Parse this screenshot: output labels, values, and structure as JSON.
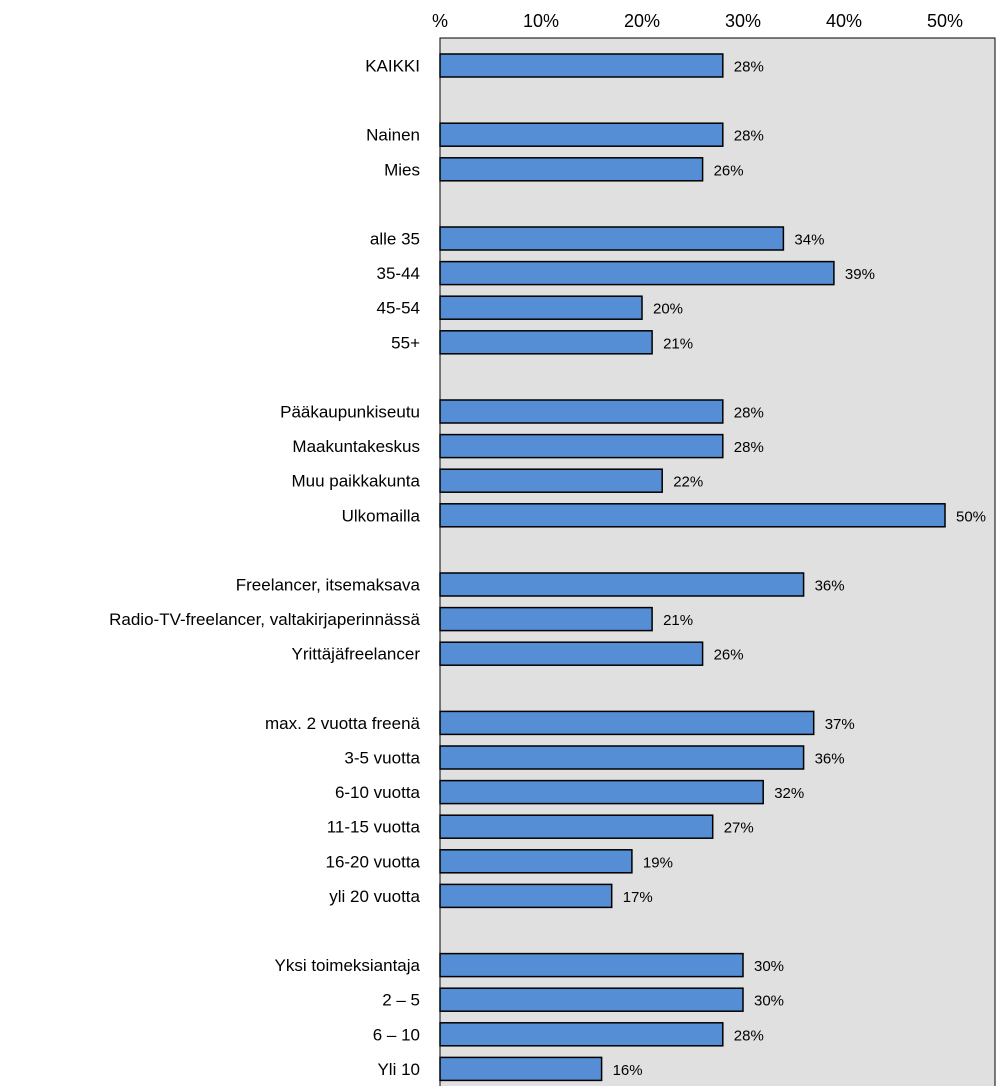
{
  "chart_data": {
    "type": "bar",
    "orientation": "horizontal",
    "x_axis_position": "top",
    "tick_labels": [
      "%",
      "10%",
      "20%",
      "30%",
      "40%",
      "50%"
    ],
    "xlim": [
      0,
      50
    ],
    "grid": false,
    "legend": "none",
    "categories": [
      "KAIKKI",
      "Nainen",
      "Mies",
      "alle 35",
      "35-44",
      "45-54",
      "55+",
      "Pääkaupunkiseutu",
      "Maakuntakeskus",
      "Muu paikkakunta",
      "Ulkomailla",
      "Freelancer, itsemaksava",
      "Radio-TV-freelancer, valtakirjaperinnässä",
      "Yrittäjäfreelancer",
      "max. 2 vuotta freenä",
      "3-5 vuotta",
      "6-10 vuotta",
      "11-15 vuotta",
      "16-20 vuotta",
      "yli 20 vuotta",
      "Yksi toimeksiantaja",
      "2 – 5",
      "6 – 10",
      "Yli 10"
    ],
    "groups": [
      1,
      2,
      4,
      4,
      3,
      6,
      4
    ],
    "values": [
      28,
      28,
      26,
      34,
      39,
      20,
      21,
      28,
      28,
      22,
      50,
      36,
      21,
      26,
      37,
      36,
      32,
      27,
      19,
      17,
      30,
      30,
      28,
      16
    ],
    "data_labels": [
      "28%",
      "28%",
      "26%",
      "34%",
      "39%",
      "20%",
      "21%",
      "28%",
      "28%",
      "22%",
      "50%",
      "36%",
      "21%",
      "26%",
      "37%",
      "36%",
      "32%",
      "27%",
      "19%",
      "17%",
      "30%",
      "30%",
      "28%",
      "16%"
    ],
    "colors": {
      "bar_fill": "#558ed5",
      "bar_stroke": "#000000",
      "plot_background": "#e0e0e0",
      "page_background": "#ffffff"
    }
  }
}
